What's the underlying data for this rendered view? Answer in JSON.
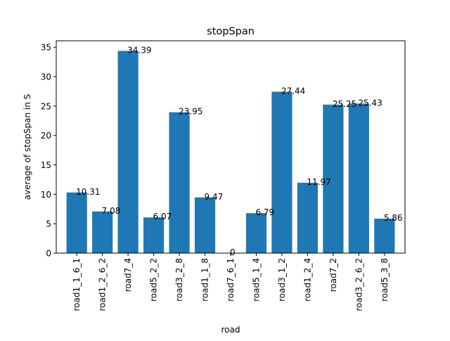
{
  "chart_data": {
    "type": "bar",
    "title": "stopSpan",
    "xlabel": "road",
    "ylabel": "average of stopSpan in S",
    "categories": [
      "road1_1_6_1",
      "road1_2_6_2",
      "road7_4",
      "road5_2_2",
      "road3_2_8",
      "road1_1_8",
      "road7_6_1",
      "road5_1_4",
      "road3_1_2",
      "road1_2_4",
      "road7_2",
      "road3_2_6_2",
      "road5_3_8"
    ],
    "values": [
      10.31,
      7.08,
      34.39,
      6.07,
      23.95,
      9.47,
      0,
      6.79,
      27.44,
      11.97,
      25.25,
      25.43,
      5.86
    ],
    "value_labels": [
      "10.31",
      "7.08",
      "34.39",
      "6.07",
      "23.95",
      "9.47",
      "0",
      "6.79",
      "27.44",
      "11.97",
      "25.25",
      "25.43",
      "5.86"
    ],
    "ylim": [
      0,
      36.1
    ],
    "yticks": [
      0,
      5,
      10,
      15,
      20,
      25,
      30,
      35
    ],
    "grid": false,
    "bar_color": "#1f77b4"
  }
}
